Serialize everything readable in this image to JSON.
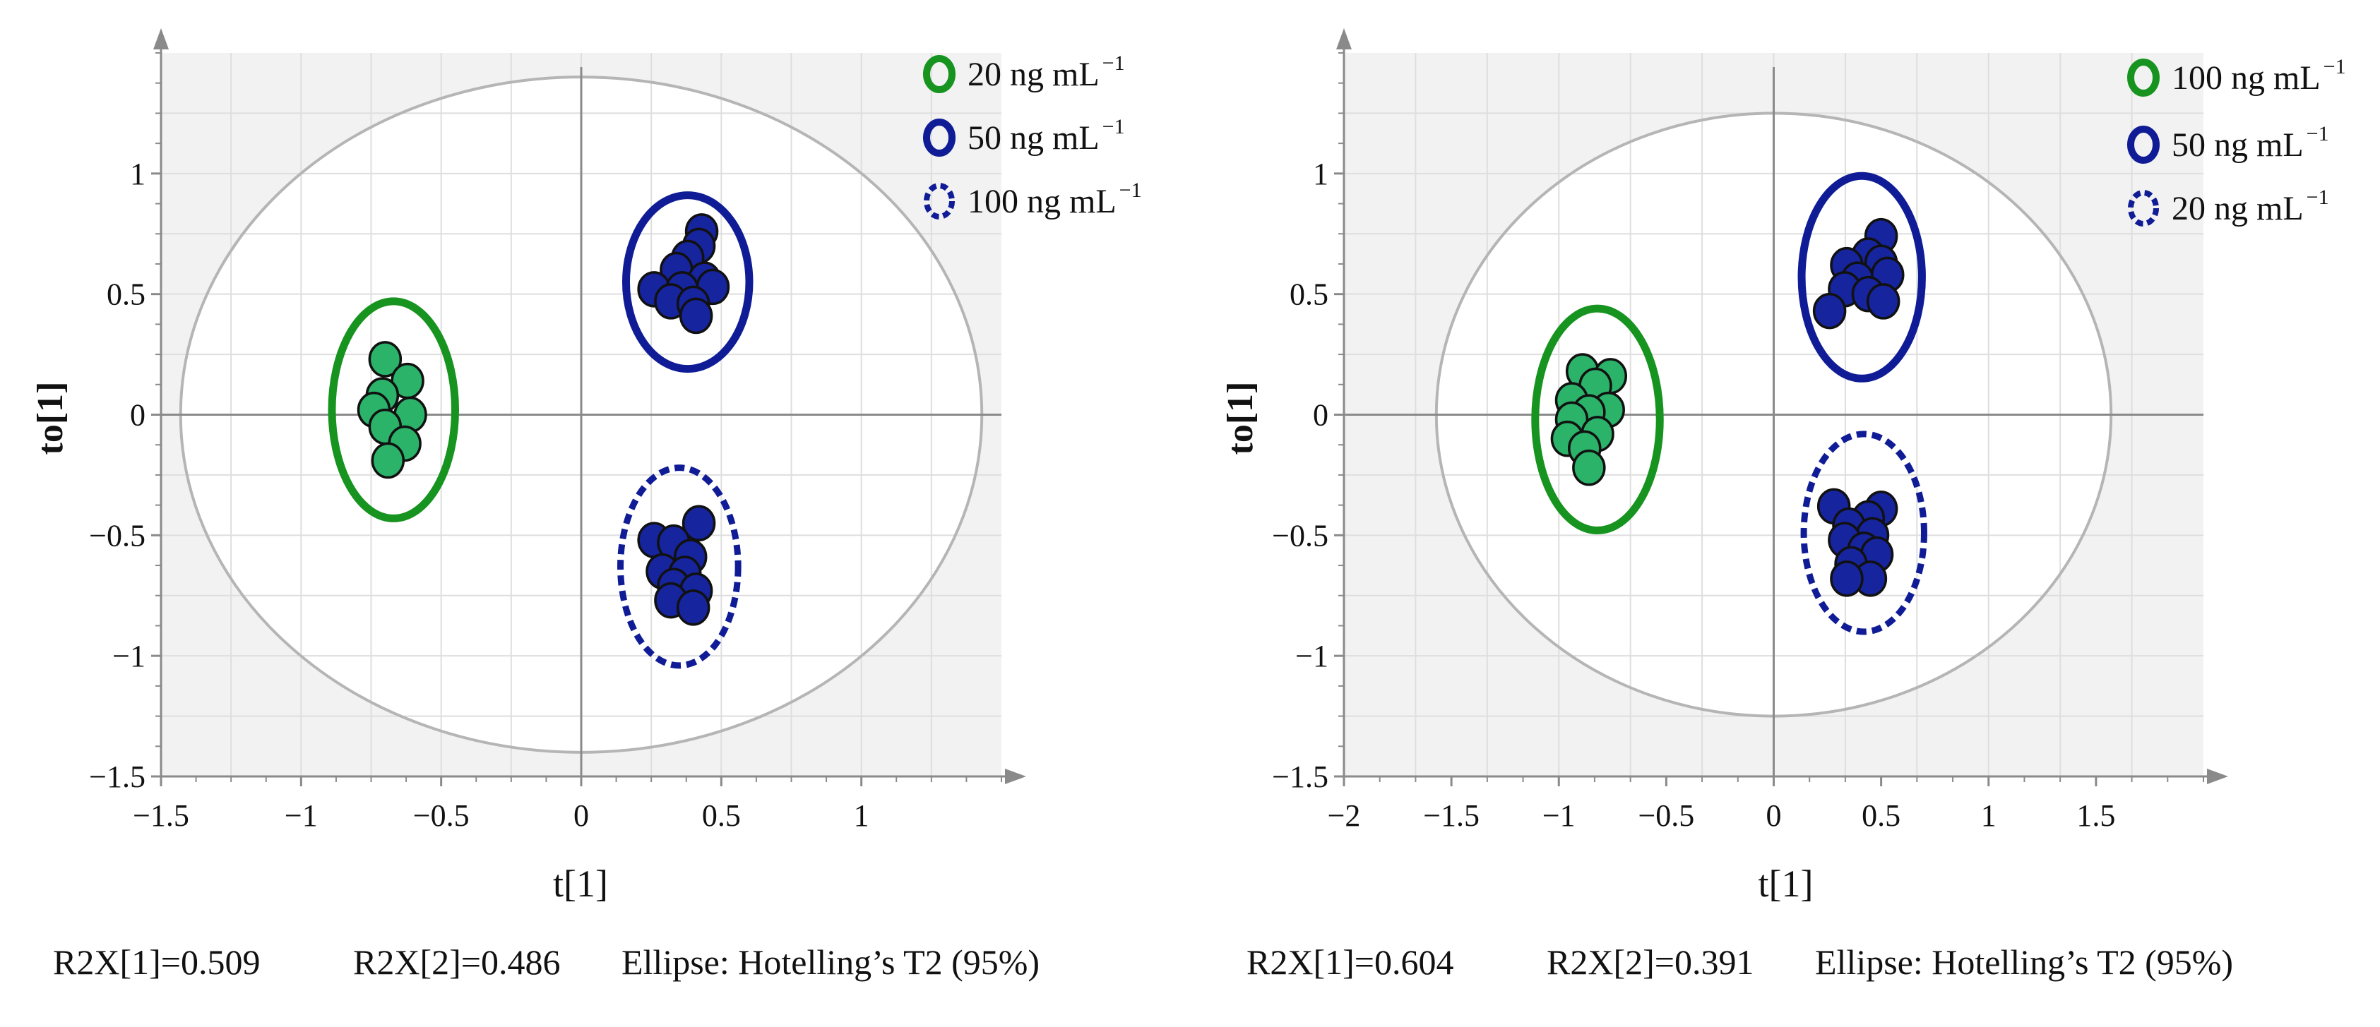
{
  "chart_data": [
    {
      "type": "scatter",
      "xlabel": "t[1]",
      "ylabel": "to[1]",
      "xlim": [
        -1.5,
        1.5
      ],
      "ylim": [
        -1.5,
        1.5
      ],
      "xticks": [
        -1.5,
        -1,
        -0.5,
        0,
        0.5,
        1
      ],
      "xtick_labels": [
        "−1.5",
        "−1",
        "−0.5",
        "0",
        "0.5",
        "1"
      ],
      "yticks": [
        -1.5,
        -1,
        -0.5,
        0,
        0.5,
        1
      ],
      "ytick_labels": [
        "−1.5",
        "−1",
        "−0.5",
        "0",
        "0.5",
        "1"
      ],
      "hotelling": {
        "rx": 1.43,
        "ry": 1.4
      },
      "legend": [
        {
          "label": "20 ng mL",
          "sup": "−1",
          "color": "#17931f",
          "style": "solid"
        },
        {
          "label": "50 ng mL",
          "sup": "−1",
          "color": "#0f1c96",
          "style": "solid"
        },
        {
          "label": "100 ng mL",
          "sup": "−1",
          "color": "#0f1c96",
          "style": "dashed"
        }
      ],
      "stats": [
        "R2X[1]=0.509",
        "R2X[2]=0.486",
        "Ellipse: Hotelling’s T2 (95%)"
      ],
      "groups": [
        {
          "name": "20 ng mL-1",
          "fill": "#2bb36a",
          "ring": "#17931f",
          "ring_style": "solid",
          "ring_center": [
            -0.67,
            0.02
          ],
          "ring_radii": [
            0.22,
            0.45
          ],
          "points": [
            [
              -0.7,
              0.23
            ],
            [
              -0.62,
              0.14
            ],
            [
              -0.71,
              0.08
            ],
            [
              -0.74,
              0.02
            ],
            [
              -0.61,
              0.0
            ],
            [
              -0.7,
              -0.05
            ],
            [
              -0.63,
              -0.12
            ],
            [
              -0.69,
              -0.19
            ]
          ]
        },
        {
          "name": "50 ng mL-1",
          "fill": "#16249e",
          "ring": "#0f1c96",
          "ring_style": "solid",
          "ring_center": [
            0.38,
            0.55
          ],
          "ring_radii": [
            0.22,
            0.36
          ],
          "points": [
            [
              0.43,
              0.76
            ],
            [
              0.42,
              0.7
            ],
            [
              0.38,
              0.65
            ],
            [
              0.34,
              0.6
            ],
            [
              0.44,
              0.56
            ],
            [
              0.26,
              0.52
            ],
            [
              0.36,
              0.52
            ],
            [
              0.47,
              0.53
            ],
            [
              0.32,
              0.47
            ],
            [
              0.4,
              0.46
            ],
            [
              0.41,
              0.41
            ]
          ]
        },
        {
          "name": "100 ng mL-1",
          "fill": "#16249e",
          "ring": "#0f1c96",
          "ring_style": "dashed",
          "ring_center": [
            0.35,
            -0.63
          ],
          "ring_radii": [
            0.21,
            0.41
          ],
          "points": [
            [
              0.42,
              -0.45
            ],
            [
              0.26,
              -0.52
            ],
            [
              0.33,
              -0.53
            ],
            [
              0.39,
              -0.59
            ],
            [
              0.29,
              -0.65
            ],
            [
              0.37,
              -0.66
            ],
            [
              0.33,
              -0.71
            ],
            [
              0.41,
              -0.73
            ],
            [
              0.32,
              -0.77
            ],
            [
              0.4,
              -0.8
            ]
          ]
        }
      ]
    },
    {
      "type": "scatter",
      "xlabel": "t[1]",
      "ylabel": "to[1]",
      "xlim": [
        -2,
        2
      ],
      "ylim": [
        -1.5,
        1.5
      ],
      "xticks": [
        -2,
        -1.5,
        -1,
        -0.5,
        0,
        0.5,
        1,
        1.5
      ],
      "xtick_labels": [
        "−2",
        "−1.5",
        "−1",
        "−0.5",
        "0",
        "0.5",
        "1",
        "1.5"
      ],
      "yticks": [
        -1.5,
        -1,
        -0.5,
        0,
        0.5,
        1
      ],
      "ytick_labels": [
        "−1.5",
        "−1",
        "−0.5",
        "0",
        "0.5",
        "1"
      ],
      "hotelling": {
        "rx": 1.57,
        "ry": 1.25
      },
      "legend": [
        {
          "label": "100 ng mL",
          "sup": "−1",
          "color": "#17931f",
          "style": "solid"
        },
        {
          "label": "50 ng mL",
          "sup": "−1",
          "color": "#0f1c96",
          "style": "solid"
        },
        {
          "label": "20 ng mL",
          "sup": "−1",
          "color": "#0f1c96",
          "style": "dashed"
        }
      ],
      "stats": [
        "R2X[1]=0.604",
        "R2X[2]=0.391",
        "Ellipse: Hotelling’s T2 (95%)"
      ],
      "groups": [
        {
          "name": "100 ng mL-1",
          "fill": "#2bb36a",
          "ring": "#17931f",
          "ring_style": "solid",
          "ring_center": [
            -0.82,
            -0.02
          ],
          "ring_radii": [
            0.29,
            0.46
          ],
          "points": [
            [
              -0.89,
              0.18
            ],
            [
              -0.76,
              0.16
            ],
            [
              -0.83,
              0.12
            ],
            [
              -0.94,
              0.06
            ],
            [
              -0.77,
              0.02
            ],
            [
              -0.86,
              0.01
            ],
            [
              -0.94,
              -0.02
            ],
            [
              -0.82,
              -0.08
            ],
            [
              -0.96,
              -0.1
            ],
            [
              -0.88,
              -0.14
            ],
            [
              -0.86,
              -0.22
            ]
          ]
        },
        {
          "name": "50 ng mL-1",
          "fill": "#16249e",
          "ring": "#0f1c96",
          "ring_style": "solid",
          "ring_center": [
            0.41,
            0.57
          ],
          "ring_radii": [
            0.28,
            0.42
          ],
          "points": [
            [
              0.5,
              0.74
            ],
            [
              0.44,
              0.66
            ],
            [
              0.34,
              0.62
            ],
            [
              0.5,
              0.63
            ],
            [
              0.39,
              0.56
            ],
            [
              0.53,
              0.58
            ],
            [
              0.33,
              0.52
            ],
            [
              0.44,
              0.5
            ],
            [
              0.51,
              0.47
            ],
            [
              0.26,
              0.43
            ]
          ]
        },
        {
          "name": "20 ng mL-1",
          "fill": "#16249e",
          "ring": "#0f1c96",
          "ring_style": "dashed",
          "ring_center": [
            0.42,
            -0.49
          ],
          "ring_radii": [
            0.28,
            0.41
          ],
          "points": [
            [
              0.28,
              -0.38
            ],
            [
              0.5,
              -0.39
            ],
            [
              0.44,
              -0.43
            ],
            [
              0.35,
              -0.46
            ],
            [
              0.46,
              -0.5
            ],
            [
              0.33,
              -0.52
            ],
            [
              0.42,
              -0.56
            ],
            [
              0.48,
              -0.58
            ],
            [
              0.36,
              -0.62
            ],
            [
              0.45,
              -0.68
            ],
            [
              0.34,
              -0.68
            ]
          ]
        }
      ]
    }
  ]
}
